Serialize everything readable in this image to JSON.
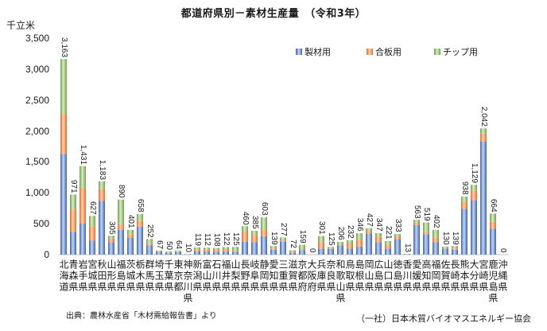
{
  "chart_data": {
    "type": "bar",
    "stacked": true,
    "title": "都道府県別－素材生産量　（令和3年）",
    "ylabel": "千立米",
    "ylim": [
      0,
      3500
    ],
    "yticks": [
      0,
      500,
      1000,
      1500,
      2000,
      2500,
      3000,
      3500
    ],
    "ytick_labels": [
      "0",
      "500",
      "1,000",
      "1,500",
      "2,000",
      "2,500",
      "3,000",
      "3,500"
    ],
    "grid": false,
    "legend": "top-right",
    "categories": [
      "北海道",
      "青森県",
      "岩手県",
      "宮城県",
      "秋田県",
      "山形県",
      "福島県",
      "茨城県",
      "栃木県",
      "群馬県",
      "埼玉県",
      "千葉県",
      "東京都",
      "神奈川県",
      "新潟県",
      "富山県",
      "石川県",
      "福井県",
      "山梨県",
      "長野県",
      "岐阜県",
      "静岡県",
      "愛知県",
      "三重県",
      "滋賀県",
      "京都府",
      "大阪府",
      "兵庫県",
      "奈良県",
      "和歌山県",
      "鳥取県",
      "島根県",
      "岡山県",
      "広島県",
      "山口県",
      "徳島県",
      "香川県",
      "愛媛県",
      "高知県",
      "福岡県",
      "佐賀県",
      "長崎県",
      "熊本県",
      "大分県",
      "宮崎県",
      "鹿児島県",
      "沖縄県"
    ],
    "totals": [
      "3,163",
      "971",
      "1,431",
      "627",
      "1,183",
      "305",
      "890",
      "401",
      "658",
      "252",
      "67",
      "50",
      "64",
      "10",
      "119",
      "112",
      "108",
      "122",
      "125",
      "460",
      "385",
      "603",
      "139",
      "277",
      "72",
      "159",
      "0",
      "301",
      "125",
      "206",
      "232",
      "346",
      "427",
      "347",
      "221",
      "333",
      "13",
      "563",
      "519",
      "402",
      "130",
      "139",
      "938",
      "1,129",
      "2,042",
      "664",
      "0"
    ],
    "series": [
      {
        "name": "製材用",
        "color": "#3B64AD",
        "color_light": "#C5D5EE",
        "values": [
          1630,
          370,
          510,
          230,
          870,
          200,
          400,
          270,
          450,
          150,
          45,
          30,
          40,
          6,
          55,
          45,
          40,
          50,
          40,
          210,
          200,
          300,
          80,
          210,
          30,
          70,
          0,
          100,
          90,
          150,
          100,
          130,
          340,
          200,
          100,
          250,
          5,
          480,
          330,
          200,
          100,
          80,
          740,
          880,
          1830,
          420,
          0
        ]
      },
      {
        "name": "合板用",
        "color": "#E46C1E",
        "color_light": "#FAD3B8",
        "values": [
          650,
          360,
          570,
          230,
          190,
          60,
          90,
          60,
          100,
          20,
          5,
          0,
          5,
          0,
          30,
          40,
          45,
          40,
          25,
          170,
          120,
          110,
          20,
          20,
          15,
          20,
          0,
          100,
          10,
          10,
          80,
          110,
          40,
          90,
          60,
          40,
          0,
          40,
          40,
          80,
          10,
          20,
          110,
          160,
          130,
          110,
          0
        ]
      },
      {
        "name": "チップ用",
        "color": "#6FA244",
        "color_light": "#D9EBCB",
        "values": [
          883,
          241,
          351,
          167,
          123,
          45,
          400,
          71,
          108,
          82,
          17,
          20,
          19,
          4,
          34,
          27,
          23,
          32,
          60,
          80,
          65,
          193,
          39,
          47,
          27,
          69,
          0,
          101,
          25,
          46,
          52,
          106,
          47,
          57,
          61,
          43,
          8,
          43,
          149,
          122,
          20,
          39,
          88,
          89,
          82,
          134,
          0
        ]
      }
    ]
  },
  "footer": {
    "source": "出典：農林水産省「木材需給報告書」より",
    "credit": "（一社）日本木質バイオマスエネルギー協会"
  }
}
